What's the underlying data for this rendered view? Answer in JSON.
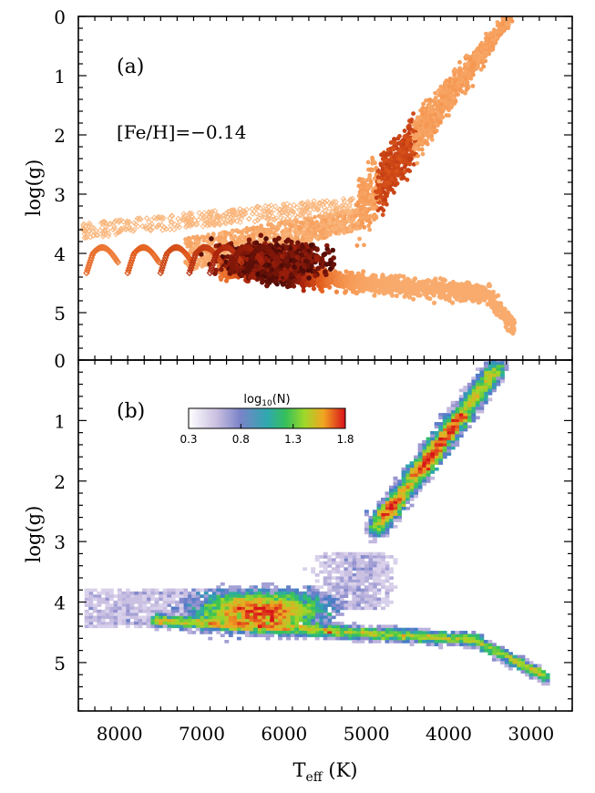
{
  "figure": {
    "panel_a_label": "(a)",
    "panel_b_label": "(b)",
    "metallicity_annotation": "[Fe/H]=−0.14",
    "ylabel": "log(g)",
    "xlabel_main": "T",
    "xlabel_sub": "eff",
    "xlabel_unit": " (K)",
    "colorbar_title_main": "log",
    "colorbar_title_sub": "10",
    "colorbar_title_tail": "(N)",
    "colorbar_ticks": [
      "0.3",
      "0.8",
      "1.3",
      "1.8"
    ]
  },
  "chart_data": [
    {
      "type": "scatter",
      "panel": "(a)",
      "description_source": "isochrone grid points, colored by density (light orange to dark red)",
      "xlabel": "",
      "ylabel": "log(g)",
      "xlim": [
        8500,
        2500
      ],
      "ylim": [
        5.8,
        0
      ],
      "x_ticks": [
        8000,
        7000,
        6000,
        5000,
        4000,
        3000
      ],
      "y_ticks": [
        0,
        1,
        2,
        3,
        4,
        5
      ],
      "annotation": "[Fe/H]=−0.14",
      "colors": {
        "low": "#fcc591",
        "mid": "#e8631e",
        "high": "#3a0606"
      }
    },
    {
      "type": "heatmap",
      "panel": "(b)",
      "xlabel": "T_eff (K)",
      "ylabel": "log(g)",
      "xlim": [
        8500,
        2500
      ],
      "ylim": [
        5.8,
        0
      ],
      "x_ticks": [
        8000,
        7000,
        6000,
        5000,
        4000,
        3000
      ],
      "y_ticks": [
        0,
        1,
        2,
        3,
        4,
        5
      ],
      "colorbar": {
        "label": "log10(N)",
        "range": [
          0.3,
          1.8
        ],
        "ticks": [
          0.3,
          0.8,
          1.3,
          1.8
        ]
      }
    }
  ]
}
